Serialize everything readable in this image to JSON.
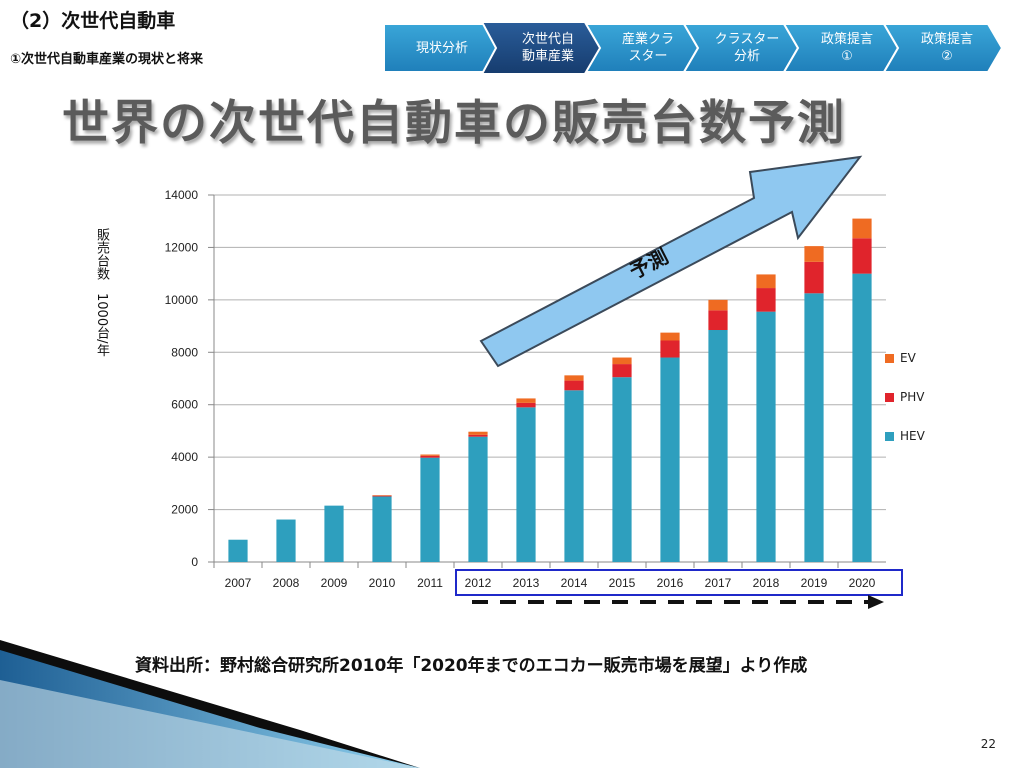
{
  "header": {
    "section_title": "（2）次世代自動車",
    "sub_title": "①次世代自動車産業の現状と将来"
  },
  "nav": {
    "steps": [
      {
        "label": "現状分析",
        "active": false
      },
      {
        "label": "次世代自\n動車産業",
        "active": true
      },
      {
        "label": "産業クラ\nスター",
        "active": false
      },
      {
        "label": "クラスター\n分析",
        "active": false
      },
      {
        "label": "政策提言\n①",
        "active": false
      },
      {
        "label": "政策提言\n②",
        "active": false
      }
    ]
  },
  "slide": {
    "title": "世界の次世代自動車の販売台数予測",
    "forecast_label": "予測",
    "source": "資料出所：野村総合研究所2010年「2020年までのエコカー販売市場を展望」より作成",
    "page_number": "22"
  },
  "chart_data": {
    "type": "bar",
    "stacked": true,
    "xlabel": "",
    "ylabel": "販売台数　1000台/年",
    "ylim": [
      0,
      14000
    ],
    "yticks": [
      0,
      2000,
      4000,
      6000,
      8000,
      10000,
      12000,
      14000
    ],
    "categories": [
      "2007",
      "2008",
      "2009",
      "2010",
      "2011",
      "2012",
      "2013",
      "2014",
      "2015",
      "2016",
      "2017",
      "2018",
      "2019",
      "2020"
    ],
    "series": [
      {
        "name": "HEV",
        "color": "#2e9fbe",
        "values": [
          850,
          1620,
          2150,
          2500,
          3980,
          4780,
          5900,
          6550,
          7050,
          7800,
          8850,
          9550,
          10250,
          11000
        ]
      },
      {
        "name": "PHV",
        "color": "#e0242c",
        "values": [
          0,
          0,
          0,
          30,
          70,
          70,
          170,
          370,
          500,
          650,
          750,
          900,
          1200,
          1350
        ]
      },
      {
        "name": "EV",
        "color": "#ef6b22",
        "values": [
          0,
          0,
          0,
          20,
          50,
          120,
          170,
          200,
          250,
          300,
          400,
          520,
          600,
          750
        ]
      }
    ],
    "legend": {
      "position": "right",
      "order": [
        "EV",
        "PHV",
        "HEV"
      ]
    },
    "grid": true,
    "forecast_range": [
      "2012",
      "2020"
    ]
  }
}
